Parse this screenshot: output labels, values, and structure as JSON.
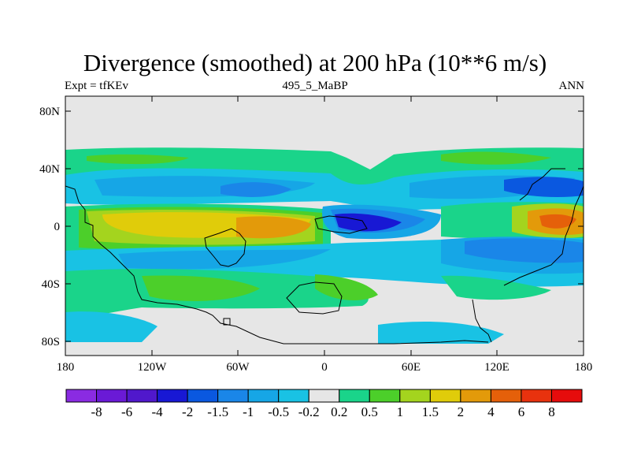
{
  "title": "Divergence (smoothed) at 200 hPa (10**6 m/s)",
  "left_label": "Expt = tfKEv",
  "center_label": "495_5_MaBP",
  "right_label": "ANN",
  "lat_ticks": [
    "80N",
    "40N",
    "0",
    "40S",
    "80S"
  ],
  "lon_ticks": [
    "180",
    "120W",
    "60W",
    "0",
    "60E",
    "120E",
    "180"
  ],
  "colorbar": {
    "labels": [
      "-8",
      "-6",
      "-4",
      "-2",
      "-1.5",
      "-1",
      "-0.5",
      "-0.2",
      "0.2",
      "0.5",
      "1",
      "1.5",
      "2",
      "4",
      "6",
      "8"
    ],
    "colors": [
      "#8a2be2",
      "#6a1ad6",
      "#5018cc",
      "#1818d4",
      "#0a58e0",
      "#1a86e8",
      "#16a6e6",
      "#19c2e4",
      "#e6e6e6",
      "#1ad48a",
      "#4ccf2a",
      "#a4d41e",
      "#e0cc0a",
      "#e39a0a",
      "#e5600a",
      "#e8320e",
      "#e60c0c"
    ]
  },
  "colors": {
    "background_field": "#e6e6e6",
    "coastline": "#000000"
  }
}
